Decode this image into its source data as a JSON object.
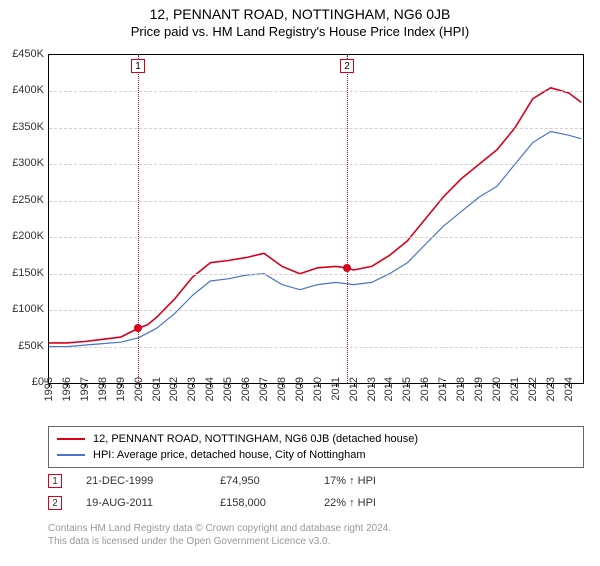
{
  "title": "12, PENNANT ROAD, NOTTINGHAM, NG6 0JB",
  "subtitle": "Price paid vs. HM Land Registry's House Price Index (HPI)",
  "chart": {
    "type": "line",
    "x_years": [
      1995,
      1996,
      1997,
      1998,
      1999,
      2000,
      2001,
      2002,
      2003,
      2004,
      2005,
      2006,
      2007,
      2008,
      2009,
      2010,
      2011,
      2012,
      2013,
      2014,
      2015,
      2016,
      2017,
      2018,
      2019,
      2020,
      2021,
      2022,
      2023,
      2024
    ],
    "xlim": [
      1995,
      2024.8
    ],
    "ylim": [
      0,
      450000
    ],
    "ytick_step": 50000,
    "ytick_labels": [
      "£0",
      "£50K",
      "£100K",
      "£150K",
      "£200K",
      "£250K",
      "£300K",
      "£350K",
      "£400K",
      "£450K"
    ],
    "grid_color": "#d0d0d0",
    "background_color": "#ffffff",
    "label_fontsize": 11,
    "series": [
      {
        "name": "12, PENNANT ROAD, NOTTINGHAM, NG6 0JB (detached house)",
        "color": "#d9001b",
        "width": 1.6,
        "data": [
          [
            1995,
            55000
          ],
          [
            1996,
            55000
          ],
          [
            1997,
            57000
          ],
          [
            1998,
            60000
          ],
          [
            1999,
            63000
          ],
          [
            1999.97,
            74950
          ],
          [
            2000.5,
            80000
          ],
          [
            2001,
            90000
          ],
          [
            2002,
            115000
          ],
          [
            2003,
            145000
          ],
          [
            2004,
            165000
          ],
          [
            2005,
            168000
          ],
          [
            2006,
            172000
          ],
          [
            2007,
            178000
          ],
          [
            2008,
            160000
          ],
          [
            2009,
            150000
          ],
          [
            2010,
            158000
          ],
          [
            2011,
            160000
          ],
          [
            2011.63,
            158000
          ],
          [
            2012,
            155000
          ],
          [
            2013,
            160000
          ],
          [
            2014,
            175000
          ],
          [
            2015,
            195000
          ],
          [
            2016,
            225000
          ],
          [
            2017,
            255000
          ],
          [
            2018,
            280000
          ],
          [
            2019,
            300000
          ],
          [
            2020,
            320000
          ],
          [
            2021,
            350000
          ],
          [
            2022,
            390000
          ],
          [
            2023,
            405000
          ],
          [
            2024,
            398000
          ],
          [
            2024.7,
            385000
          ]
        ]
      },
      {
        "name": "HPI: Average price, detached house, City of Nottingham",
        "color": "#4a74c9",
        "width": 1.2,
        "data": [
          [
            1995,
            50000
          ],
          [
            1996,
            50000
          ],
          [
            1997,
            52000
          ],
          [
            1998,
            54000
          ],
          [
            1999,
            56000
          ],
          [
            2000,
            62000
          ],
          [
            2001,
            75000
          ],
          [
            2002,
            95000
          ],
          [
            2003,
            120000
          ],
          [
            2004,
            140000
          ],
          [
            2005,
            143000
          ],
          [
            2006,
            148000
          ],
          [
            2007,
            150000
          ],
          [
            2008,
            135000
          ],
          [
            2009,
            128000
          ],
          [
            2010,
            135000
          ],
          [
            2011,
            138000
          ],
          [
            2012,
            135000
          ],
          [
            2013,
            138000
          ],
          [
            2014,
            150000
          ],
          [
            2015,
            165000
          ],
          [
            2016,
            190000
          ],
          [
            2017,
            215000
          ],
          [
            2018,
            235000
          ],
          [
            2019,
            255000
          ],
          [
            2020,
            270000
          ],
          [
            2021,
            300000
          ],
          [
            2022,
            330000
          ],
          [
            2023,
            345000
          ],
          [
            2024,
            340000
          ],
          [
            2024.7,
            335000
          ]
        ]
      }
    ],
    "events": [
      {
        "n": "1",
        "year": 1999.97,
        "price": 74950,
        "color": "#d9001b",
        "date": "21-DEC-1999",
        "price_label": "£74,950",
        "change": "17% ↑ HPI"
      },
      {
        "n": "2",
        "year": 2011.63,
        "price": 158000,
        "color": "#d9001b",
        "date": "19-AUG-2011",
        "price_label": "£158,000",
        "change": "22% ↑ HPI"
      }
    ],
    "event_point_radius": 4
  },
  "legend": {
    "items": [
      {
        "color": "#d9001b",
        "label": "12, PENNANT ROAD, NOTTINGHAM, NG6 0JB (detached house)"
      },
      {
        "color": "#4a74c9",
        "label": "HPI: Average price, detached house, City of Nottingham"
      }
    ]
  },
  "footer": {
    "line1": "Contains HM Land Registry data © Crown copyright and database right 2024.",
    "line2": "This data is licensed under the Open Government Licence v3.0."
  }
}
